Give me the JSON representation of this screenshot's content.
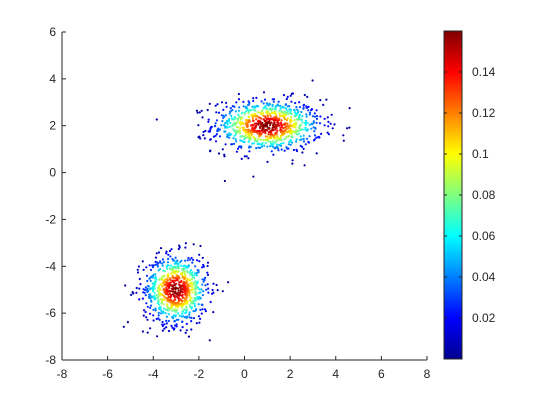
{
  "chart_data": {
    "type": "scatter",
    "title": "",
    "xlabel": "",
    "ylabel": "",
    "xlim": [
      -8,
      8
    ],
    "ylim": [
      -8,
      6
    ],
    "xticks": [
      -8,
      -6,
      -4,
      -2,
      0,
      2,
      4,
      6,
      8
    ],
    "yticks": [
      -8,
      -6,
      -4,
      -2,
      0,
      2,
      4,
      6
    ],
    "grid": false,
    "box": "off",
    "colormap": "jet",
    "color_dimension": "probability density",
    "clusters": [
      {
        "center": [
          1.0,
          2.0
        ],
        "spread": [
          1.6,
          0.75
        ],
        "points": 900
      },
      {
        "center": [
          -3.0,
          -5.0
        ],
        "spread": [
          0.95,
          1.0
        ],
        "points": 800
      }
    ],
    "colorbar": {
      "location": "right",
      "limits": [
        0,
        0.16
      ],
      "ticks": [
        0.02,
        0.04,
        0.06,
        0.08,
        0.1,
        0.12,
        0.14
      ],
      "tick_labels": [
        "0.02",
        "0.04",
        "0.06",
        "0.08",
        "0.1",
        "0.12",
        "0.14"
      ]
    },
    "marker_color_low": "#00008F",
    "marker_color_high": "#800000"
  }
}
